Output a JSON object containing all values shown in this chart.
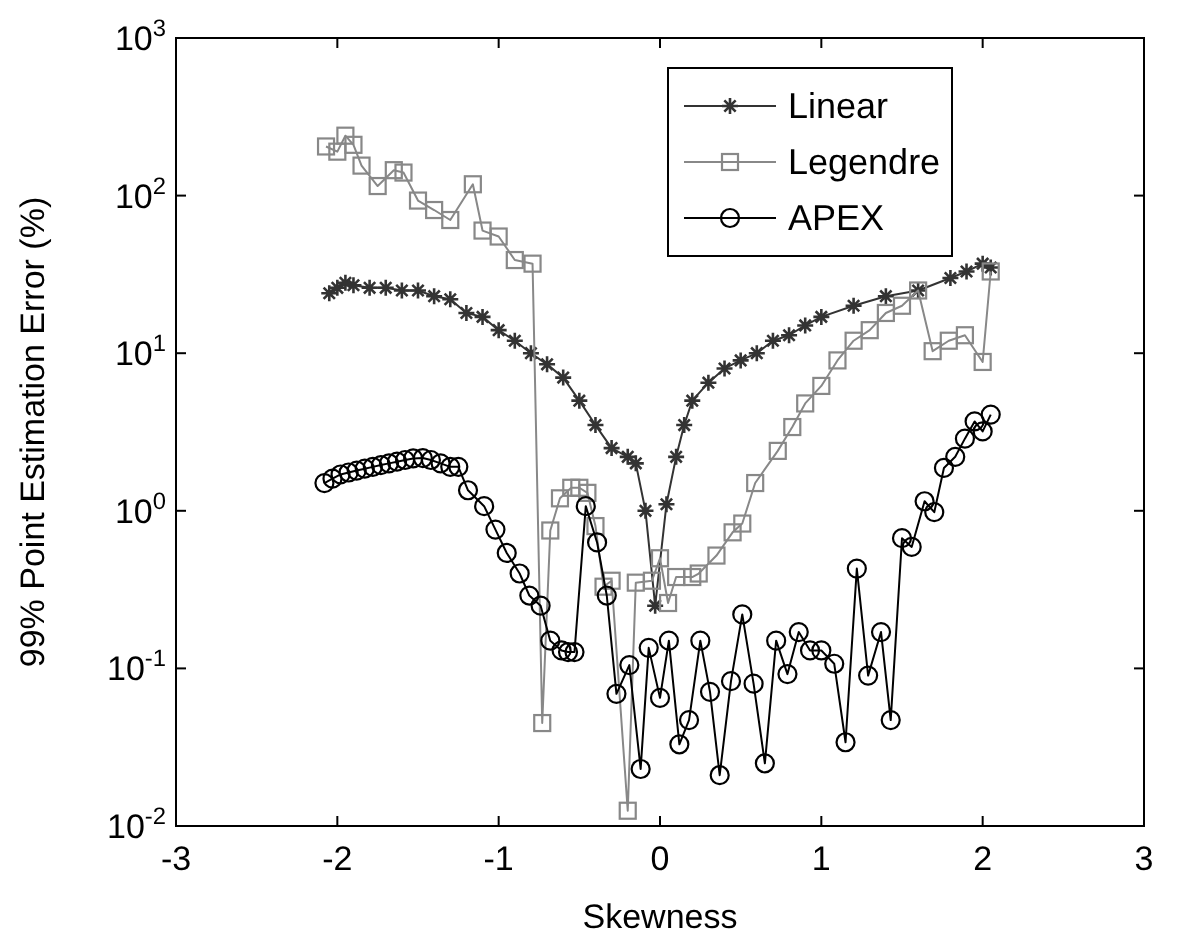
{
  "chart_data": {
    "type": "line",
    "xlabel": "Skewness",
    "ylabel": "99% Point Estimation Error (%)",
    "log": "y",
    "xlim": [
      -3,
      3
    ],
    "xticks": [
      -3,
      -2,
      -1,
      0,
      1,
      2,
      3
    ],
    "ylim": [
      0.01,
      1000
    ],
    "yticks": [
      {
        "value": 0.01,
        "label": "10$^{-2}$"
      },
      {
        "value": 0.1,
        "label": "10$^{-1}$"
      },
      {
        "value": 1,
        "label": "10$^{0}$"
      },
      {
        "value": 10,
        "label": "10$^{1}$"
      },
      {
        "value": 100,
        "label": "10$^{2}$"
      },
      {
        "value": 1000,
        "label": "10$^{3}$"
      }
    ],
    "grid": false,
    "legend": "top right",
    "series": [
      {
        "name": "Linear",
        "color": "#333333",
        "marker": "cross",
        "x": [
          -2.05,
          -2.0,
          -1.95,
          -1.9,
          -1.8,
          -1.7,
          -1.6,
          -1.5,
          -1.4,
          -1.3,
          -1.2,
          -1.1,
          -1.0,
          -0.9,
          -0.8,
          -0.7,
          -0.6,
          -0.5,
          -0.4,
          -0.3,
          -0.2,
          -0.15,
          -0.09,
          -0.03,
          0.04,
          0.1,
          0.15,
          0.2,
          0.3,
          0.4,
          0.5,
          0.6,
          0.7,
          0.8,
          0.9,
          1.0,
          1.2,
          1.4,
          1.6,
          1.8,
          1.9,
          2.0,
          2.05
        ],
        "values": [
          24,
          26,
          28,
          27,
          26,
          26,
          25,
          25,
          23,
          22,
          18,
          17,
          14,
          12,
          10,
          8.5,
          7,
          5,
          3.5,
          2.5,
          2.2,
          2.0,
          1.0,
          0.25,
          1.1,
          2.2,
          3.5,
          5,
          6.5,
          8,
          9,
          10,
          12,
          13,
          15,
          17,
          20,
          23,
          25,
          30,
          33,
          37,
          35
        ]
      },
      {
        "name": "Legendre",
        "color": "#888888",
        "marker": "square",
        "x": [
          -2.07,
          -2.0,
          -1.95,
          -1.9,
          -1.85,
          -1.75,
          -1.65,
          -1.59,
          -1.5,
          -1.4,
          -1.3,
          -1.16,
          -1.1,
          -1.0,
          -0.9,
          -0.79,
          -0.73,
          -0.68,
          -0.62,
          -0.55,
          -0.5,
          -0.45,
          -0.4,
          -0.35,
          -0.3,
          -0.2,
          -0.15,
          -0.05,
          0.0,
          0.05,
          0.1,
          0.2,
          0.24,
          0.35,
          0.45,
          0.51,
          0.59,
          0.73,
          0.82,
          0.9,
          1.0,
          1.1,
          1.2,
          1.3,
          1.4,
          1.5,
          1.6,
          1.69,
          1.79,
          1.89,
          2.0,
          2.05
        ],
        "values": [
          205,
          190,
          240,
          210,
          155,
          115,
          145,
          140,
          93,
          81,
          70,
          118,
          60,
          55,
          39,
          37,
          0.045,
          0.75,
          1.2,
          1.4,
          1.4,
          1.3,
          0.8,
          0.33,
          0.36,
          0.0125,
          0.35,
          0.36,
          0.5,
          0.26,
          0.38,
          0.38,
          0.4,
          0.52,
          0.73,
          0.83,
          1.5,
          2.4,
          3.4,
          4.8,
          6.2,
          9,
          12,
          14,
          18,
          20,
          25,
          10.3,
          12,
          13,
          8.8,
          33
        ]
      },
      {
        "name": "APEX",
        "color": "#000000",
        "marker": "circle",
        "x": [
          -2.08,
          -2.03,
          -1.98,
          -1.93,
          -1.88,
          -1.83,
          -1.78,
          -1.73,
          -1.68,
          -1.63,
          -1.58,
          -1.53,
          -1.47,
          -1.42,
          -1.36,
          -1.3,
          -1.25,
          -1.19,
          -1.09,
          -1.02,
          -0.95,
          -0.87,
          -0.81,
          -0.74,
          -0.68,
          -0.61,
          -0.57,
          -0.53,
          -0.46,
          -0.39,
          -0.33,
          -0.27,
          -0.19,
          -0.12,
          -0.07,
          0.0,
          0.055,
          0.12,
          0.18,
          0.25,
          0.31,
          0.37,
          0.44,
          0.51,
          0.58,
          0.65,
          0.72,
          0.79,
          0.86,
          0.93,
          1.0,
          1.08,
          1.15,
          1.22,
          1.29,
          1.37,
          1.43,
          1.5,
          1.56,
          1.64,
          1.7,
          1.76,
          1.83,
          1.89,
          1.95,
          2.0,
          2.05
        ],
        "values": [
          1.5,
          1.6,
          1.7,
          1.75,
          1.8,
          1.85,
          1.9,
          1.95,
          2.0,
          2.05,
          2.1,
          2.15,
          2.16,
          2.1,
          2.0,
          1.9,
          1.9,
          1.35,
          1.07,
          0.76,
          0.54,
          0.4,
          0.29,
          0.25,
          0.15,
          0.13,
          0.127,
          0.127,
          1.07,
          0.63,
          0.29,
          0.069,
          0.105,
          0.023,
          0.135,
          0.065,
          0.15,
          0.033,
          0.047,
          0.15,
          0.071,
          0.021,
          0.083,
          0.22,
          0.08,
          0.025,
          0.15,
          0.092,
          0.17,
          0.13,
          0.13,
          0.107,
          0.034,
          0.43,
          0.09,
          0.17,
          0.047,
          0.67,
          0.59,
          1.15,
          0.98,
          1.87,
          2.2,
          2.87,
          3.69,
          3.19,
          4.08
        ]
      }
    ]
  }
}
